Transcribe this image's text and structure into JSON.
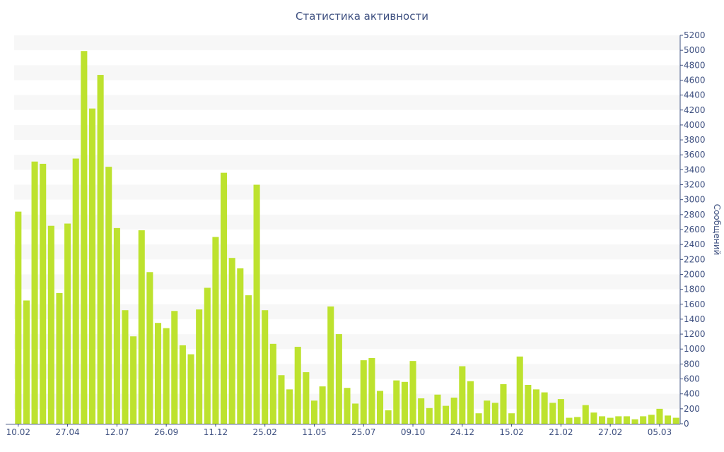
{
  "chart_data": {
    "type": "bar",
    "title": "Статистика активности",
    "ylabel": "Сообщений",
    "ylim": [
      0,
      5200
    ],
    "y_ticks": [
      0,
      200,
      400,
      600,
      800,
      1000,
      1200,
      1400,
      1600,
      1800,
      2000,
      2200,
      2400,
      2600,
      2800,
      3000,
      3200,
      3400,
      3600,
      3800,
      4000,
      4200,
      4400,
      4600,
      4800,
      5000,
      5200
    ],
    "y_axis_position": "right",
    "grid": "alternating horizontal bands",
    "x_tick_labels": [
      {
        "index": 0,
        "label": "10.02"
      },
      {
        "index": 6,
        "label": "27.04"
      },
      {
        "index": 12,
        "label": "12.07"
      },
      {
        "index": 18,
        "label": "26.09"
      },
      {
        "index": 24,
        "label": "11.12"
      },
      {
        "index": 30,
        "label": "25.02"
      },
      {
        "index": 36,
        "label": "11.05"
      },
      {
        "index": 42,
        "label": "25.07"
      },
      {
        "index": 48,
        "label": "09.10"
      },
      {
        "index": 54,
        "label": "24.12"
      },
      {
        "index": 60,
        "label": "15.02"
      },
      {
        "index": 66,
        "label": "21.02"
      },
      {
        "index": 72,
        "label": "27.02"
      },
      {
        "index": 78,
        "label": "05.03"
      }
    ],
    "values": [
      2840,
      1650,
      3510,
      3480,
      2650,
      1750,
      2680,
      3550,
      4990,
      4220,
      4670,
      3440,
      2620,
      1520,
      1170,
      2590,
      2030,
      1350,
      1280,
      1510,
      1050,
      930,
      1530,
      1820,
      2500,
      3360,
      2220,
      2080,
      1720,
      3200,
      1520,
      1070,
      650,
      460,
      1030,
      690,
      310,
      500,
      1570,
      1200,
      480,
      270,
      850,
      880,
      440,
      180,
      580,
      560,
      840,
      340,
      210,
      390,
      240,
      350,
      770,
      570,
      140,
      310,
      280,
      530,
      140,
      900,
      520,
      460,
      420,
      280,
      330,
      80,
      90,
      250,
      150,
      100,
      80,
      100,
      100,
      60,
      100,
      120,
      200,
      110,
      80
    ],
    "colors": {
      "bar": "#bde22e",
      "band": "#f7f7f7",
      "axis_text": "#3e5080",
      "axis_line": "#3e5080"
    }
  }
}
